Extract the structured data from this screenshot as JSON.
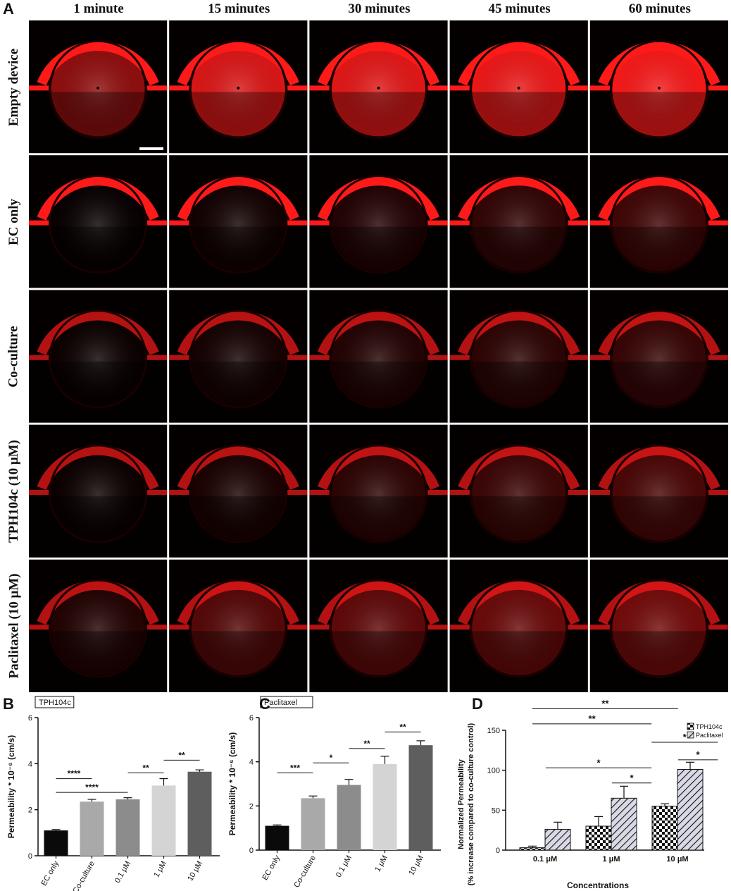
{
  "panel_a": {
    "letter": "A",
    "columns": [
      "1 minute",
      "15 minutes",
      "30 minutes",
      "45 minutes",
      "60 minutes"
    ],
    "rows": [
      "Empty device",
      "EC only",
      "Co-culture",
      "TPH104c (10 μM)",
      "Paclitaxel (10 μM)"
    ],
    "fluorescence_color": "#ff1a1a",
    "intensity_level": [
      [
        0.55,
        0.85,
        0.88,
        0.92,
        0.96
      ],
      [
        0.02,
        0.06,
        0.12,
        0.18,
        0.24
      ],
      [
        0.03,
        0.07,
        0.12,
        0.16,
        0.2
      ],
      [
        0.03,
        0.09,
        0.16,
        0.22,
        0.28
      ],
      [
        0.12,
        0.32,
        0.36,
        0.4,
        0.44
      ]
    ]
  },
  "chart_data": [
    {
      "letter": "B",
      "type": "bar",
      "legend_box": "TPH104c",
      "ylabel": "Permeability * 10⁻⁶ (cm/s)",
      "ylim": [
        0,
        6
      ],
      "yticks": [
        0,
        2,
        4,
        6
      ],
      "categories": [
        "EC only",
        "Co-culture",
        "0.1 μM",
        "1 μM",
        "10 μM"
      ],
      "values": [
        1.1,
        2.35,
        2.45,
        3.05,
        3.65
      ],
      "errors": [
        0.04,
        0.1,
        0.07,
        0.3,
        0.08
      ],
      "colors": [
        "#0a0a0a",
        "#a9a9a9",
        "#8c8c8c",
        "#d4d4d4",
        "#5e5e5e"
      ],
      "significance": [
        {
          "from": 0,
          "to": 1,
          "y": 3.35,
          "label": "****"
        },
        {
          "from": 0,
          "to": 2,
          "y": 2.75,
          "label": "****"
        },
        {
          "from": 2,
          "to": 3,
          "y": 3.6,
          "label": "**"
        },
        {
          "from": 3,
          "to": 4,
          "y": 4.15,
          "label": "**"
        }
      ]
    },
    {
      "letter": "C",
      "type": "bar",
      "legend_box": "Paclitaxel",
      "ylabel": "Permeability * 10⁻⁶ (cm/s)",
      "ylim": [
        0,
        6
      ],
      "yticks": [
        0,
        2,
        4,
        6
      ],
      "categories": [
        "EC only",
        "Co-culture",
        "0.1 μM",
        "1 μM",
        "10 μM"
      ],
      "values": [
        1.1,
        2.35,
        2.95,
        3.9,
        4.75
      ],
      "errors": [
        0.04,
        0.1,
        0.25,
        0.35,
        0.2
      ],
      "colors": [
        "#0a0a0a",
        "#a9a9a9",
        "#8c8c8c",
        "#d4d4d4",
        "#5e5e5e"
      ],
      "significance": [
        {
          "from": 0,
          "to": 1,
          "y": 3.5,
          "label": "***"
        },
        {
          "from": 1,
          "to": 2,
          "y": 3.95,
          "label": "*"
        },
        {
          "from": 2,
          "to": 3,
          "y": 4.6,
          "label": "**"
        },
        {
          "from": 3,
          "to": 4,
          "y": 5.35,
          "label": "**"
        }
      ]
    },
    {
      "letter": "D",
      "type": "bar",
      "ylabel_lines": [
        "Normalized Permeability",
        "(% increase compared to co-culture control)"
      ],
      "xlabel": "Concentrations",
      "ylim": [
        0,
        150
      ],
      "yticks": [
        0,
        50,
        100,
        150
      ],
      "categories": [
        "0.1 μM",
        "1 μM",
        "10 μM"
      ],
      "legend_placement": "top-right",
      "series": [
        {
          "name": "TPH104c",
          "pattern": "checker",
          "values": [
            3,
            30,
            55
          ],
          "errors": [
            2,
            12,
            3
          ]
        },
        {
          "name": "Paclitaxel",
          "pattern": "hatch",
          "values": [
            26,
            65,
            101
          ],
          "errors": [
            9,
            15,
            9
          ]
        }
      ],
      "significance": [
        {
          "x1": 0,
          "x2": 2.2,
          "y": 177,
          "label": "**"
        },
        {
          "x1": 0,
          "x2": 1.8,
          "y": 158,
          "label": "**"
        },
        {
          "x1": 1.8,
          "x2": 2.8,
          "y": 135,
          "label": "*"
        },
        {
          "x1": 0.2,
          "x2": 1.8,
          "y": 103,
          "label": "*"
        },
        {
          "x1": 1.2,
          "x2": 1.8,
          "y": 84,
          "label": "*"
        },
        {
          "x1": 2.2,
          "x2": 2.8,
          "y": 113,
          "label": "*"
        }
      ]
    }
  ]
}
